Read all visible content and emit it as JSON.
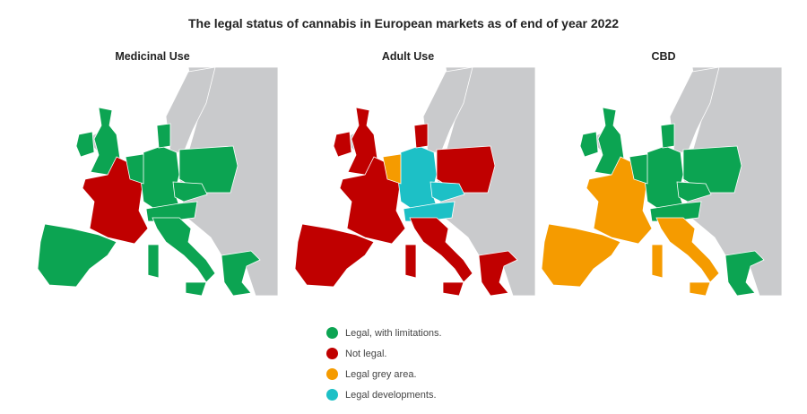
{
  "title": "The legal status of cannabis in European markets as of end of year 2022",
  "colors": {
    "legal": "#0ca452",
    "illegal": "#c00000",
    "grey": "#f59b00",
    "developments": "#1dc0c6",
    "none": "#c9cacc",
    "border": "#ffffff"
  },
  "legend": [
    {
      "key": "legal",
      "label": "Legal, with limitations."
    },
    {
      "key": "illegal",
      "label": "Not legal."
    },
    {
      "key": "grey",
      "label": "Legal grey area."
    },
    {
      "key": "developments",
      "label": "Legal developments."
    }
  ],
  "maps": [
    {
      "title": "Medicinal Use",
      "statuses": {
        "uk": "legal",
        "ireland": "legal",
        "france": "illegal",
        "iberia": "legal",
        "germany": "legal",
        "benelux": "legal",
        "denmark": "legal",
        "poland": "legal",
        "czechia": "legal",
        "alps": "legal",
        "italy": "legal",
        "sardinia": "legal",
        "sicily": "legal",
        "greece": "legal"
      }
    },
    {
      "title": "Adult Use",
      "statuses": {
        "uk": "illegal",
        "ireland": "illegal",
        "france": "illegal",
        "iberia": "illegal",
        "germany": "developments",
        "benelux": "grey",
        "denmark": "illegal",
        "poland": "illegal",
        "czechia": "developments",
        "alps": "developments",
        "italy": "illegal",
        "sardinia": "illegal",
        "sicily": "illegal",
        "greece": "illegal"
      }
    },
    {
      "title": "CBD",
      "statuses": {
        "uk": "legal",
        "ireland": "legal",
        "france": "grey",
        "iberia": "grey",
        "germany": "legal",
        "benelux": "legal",
        "denmark": "legal",
        "poland": "legal",
        "czechia": "legal",
        "alps": "legal",
        "italy": "grey",
        "sardinia": "grey",
        "sicily": "grey",
        "greece": "legal"
      }
    }
  ]
}
